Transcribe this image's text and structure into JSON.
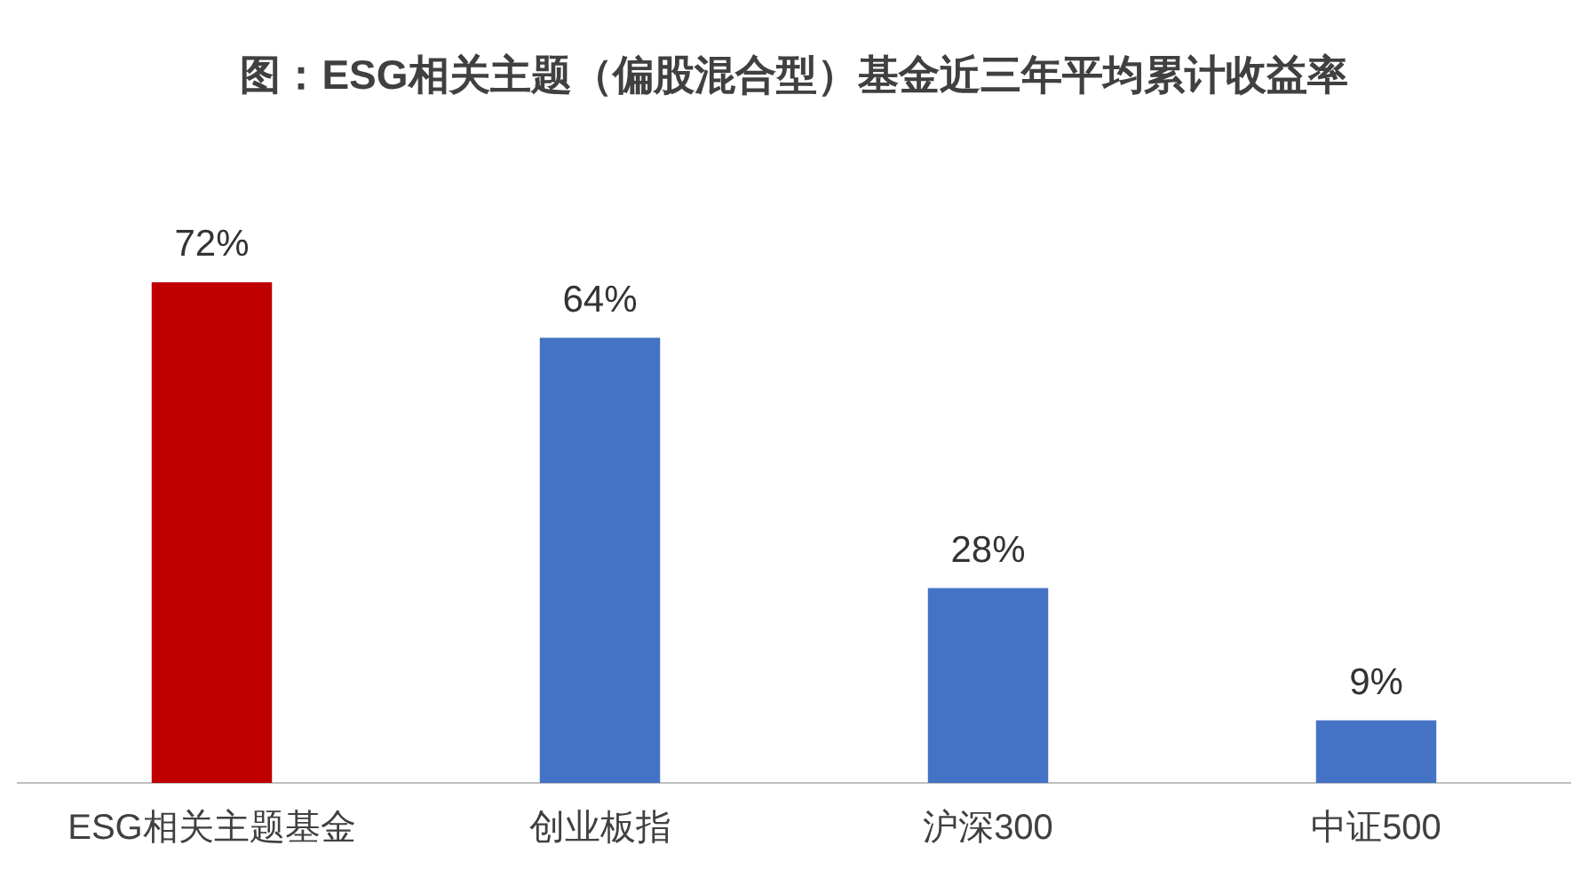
{
  "chart_data": {
    "type": "bar",
    "title": "图：ESG相关主题（偏股混合型）基金近三年平均累计收益率",
    "categories": [
      "ESG相关主题基金",
      "创业板指",
      "沪深300",
      "中证500"
    ],
    "values": [
      72,
      64,
      28,
      9
    ],
    "colors": [
      "#c00000",
      "#4472c4",
      "#4472c4",
      "#4472c4"
    ],
    "value_labels": [
      "72%",
      "64%",
      "28%",
      "9%"
    ],
    "tick_labels": "x",
    "grid": false,
    "legend": false
  }
}
